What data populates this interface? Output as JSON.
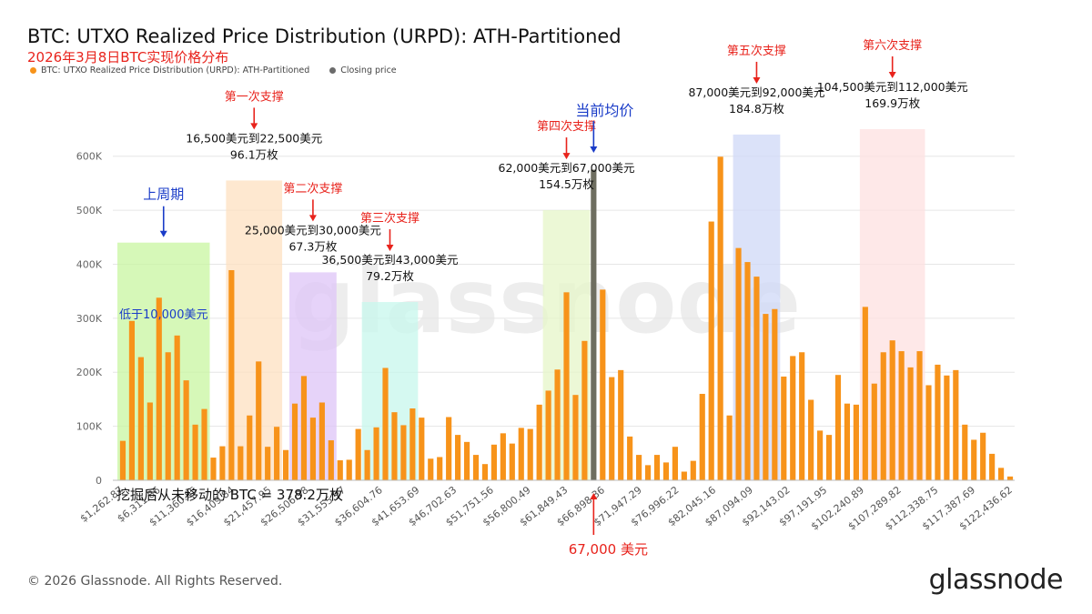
{
  "header": {
    "title": "BTC: UTXO Realized Price Distribution (URPD): ATH-Partitioned",
    "subtitle": "2026年3月8日BTC实现价格分布",
    "legend": [
      {
        "label": "BTC: UTXO Realized Price Distribution (URPD): ATH-Partitioned",
        "color": "#f7931a"
      },
      {
        "label": "Closing price",
        "color": "#6b6b6b"
      }
    ]
  },
  "footer": {
    "copyright": "© 2026 Glassnode. All Rights Reserved.",
    "brand": "glassnode",
    "watermark": "glassnode"
  },
  "colors": {
    "bar": "#f7931a",
    "closing": "#6e6e60",
    "annotation_red": "#e8231c",
    "annotation_blue": "#1a3cc8",
    "grid": "#e6e6e6"
  },
  "chart_data": {
    "type": "bar",
    "ylim": [
      0,
      650000
    ],
    "y_ticks": [
      0,
      100000,
      200000,
      300000,
      400000,
      500000,
      600000
    ],
    "y_tick_labels": [
      "0",
      "100K",
      "200K",
      "300K",
      "400K",
      "500K",
      "600K"
    ],
    "x_tick_labels": [
      "$1,262.87",
      "$6,311.86",
      "$11,360.85",
      "$16,409.84",
      "$21,457.95",
      "$26,506.98",
      "$31,555.97",
      "$36,604.76",
      "$41,653.69",
      "$46,702.63",
      "$51,751.56",
      "$56,800.49",
      "$61,849.43",
      "$66,898.36",
      "$71,947.29",
      "$76,996.22",
      "$82,045.16",
      "$87,094.09",
      "$92,143.02",
      "$97,191.95",
      "$102,240.89",
      "$107,289.82",
      "$112,338.75",
      "$117,387.69",
      "$122,436.62"
    ],
    "values": [
      73000,
      295000,
      228000,
      144000,
      338000,
      237000,
      268000,
      185000,
      103000,
      132000,
      42000,
      63000,
      389000,
      63000,
      120000,
      220000,
      62000,
      99000,
      56000,
      142000,
      193000,
      116000,
      144000,
      74000,
      37000,
      38000,
      95000,
      56000,
      98000,
      208000,
      126000,
      102000,
      133000,
      116000,
      40000,
      43000,
      117000,
      84000,
      71000,
      47000,
      30000,
      66000,
      87000,
      68000,
      97000,
      95000,
      140000,
      166000,
      205000,
      348000,
      158000,
      258000,
      575000,
      353000,
      191000,
      204000,
      81000,
      47000,
      28000,
      47000,
      33000,
      62000,
      16000,
      36000,
      160000,
      479000,
      599000,
      120000,
      430000,
      404000,
      377000,
      308000,
      317000,
      192000,
      230000,
      237000,
      149000,
      92000,
      84000,
      195000,
      142000,
      140000,
      321000,
      179000,
      237000,
      259000,
      239000,
      209000,
      239000,
      176000,
      214000,
      194000,
      204000,
      103000,
      75000,
      88000,
      49000,
      23000,
      7000
    ],
    "closing_price_index": 52,
    "closing_price_label": "67,000 美元",
    "total_label": "挖掘后从未移动的 BTC = 378.2万枚",
    "current_avg_label": "当前均价",
    "zones": [
      {
        "title": "上周期",
        "title_color": "blue",
        "inner": "低于10,000美元",
        "range": "",
        "amount": "",
        "start": 0,
        "end": 9,
        "top": 440000,
        "color": "#c8f5a0"
      },
      {
        "title": "第一次支撑",
        "title_color": "red",
        "range": "16,500美元到22,500美元",
        "amount": "96.1万枚",
        "start": 12,
        "end": 17,
        "top": 555000,
        "color": "#fde0c0"
      },
      {
        "title": "第二次支撑",
        "title_color": "red",
        "range": "25,000美元到30,000美元",
        "amount": "67.3万枚",
        "start": 19,
        "end": 23,
        "top": 385000,
        "color": "#ddc4f7"
      },
      {
        "title": "第三次支撑",
        "title_color": "red",
        "range": "36,500美元到43,000美元",
        "amount": "79.2万枚",
        "start": 27,
        "end": 32,
        "top": 330000,
        "color": "#c7f7ec"
      },
      {
        "title": "第四次支撑",
        "title_color": "red",
        "range": "62,000美元到67,000美元",
        "amount": "154.5万枚",
        "start": 47,
        "end": 51,
        "top": 500000,
        "color": "#e6f5c8"
      },
      {
        "title": "第五次支撑",
        "title_color": "red",
        "range": "87,000美元到92,000美元",
        "amount": "184.8万枚",
        "start": 68,
        "end": 72,
        "top": 640000,
        "color": "#cfd8f7"
      },
      {
        "title": "第六次支撑",
        "title_color": "red",
        "range": "104,500美元到112,000美元",
        "amount": "169.9万枚",
        "start": 82,
        "end": 88,
        "top": 715000,
        "color": "#fde0e0"
      }
    ]
  }
}
